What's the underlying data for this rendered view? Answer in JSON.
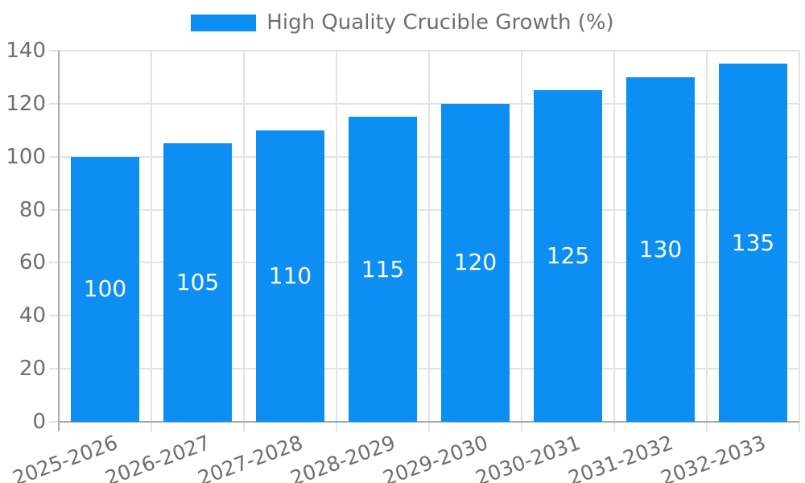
{
  "legend": {
    "label": "High Quality Crucible Growth (%)"
  },
  "colors": {
    "bar": "#0d8ef2",
    "grid": "#e3e3e3",
    "axis": "#a9a9a9",
    "tick_text": "#6e6e6e",
    "value_text": "#ffffff",
    "background": "#ffffff"
  },
  "chart_data": {
    "type": "bar",
    "title": "High Quality Crucible Growth (%)",
    "categories": [
      "2025-2026",
      "2026-2027",
      "2027-2028",
      "2028-2029",
      "2029-2030",
      "2030-2031",
      "2031-2032",
      "2032-2033"
    ],
    "values": [
      100,
      105,
      110,
      115,
      120,
      125,
      130,
      135
    ],
    "xlabel": "",
    "ylabel": "",
    "ylim": [
      0,
      140
    ],
    "yticks": [
      0,
      20,
      40,
      60,
      80,
      100,
      120,
      140
    ],
    "grid": true,
    "legend_position": "top-center",
    "value_label_position": "inside-center",
    "x_label_rotation_deg": -20
  }
}
